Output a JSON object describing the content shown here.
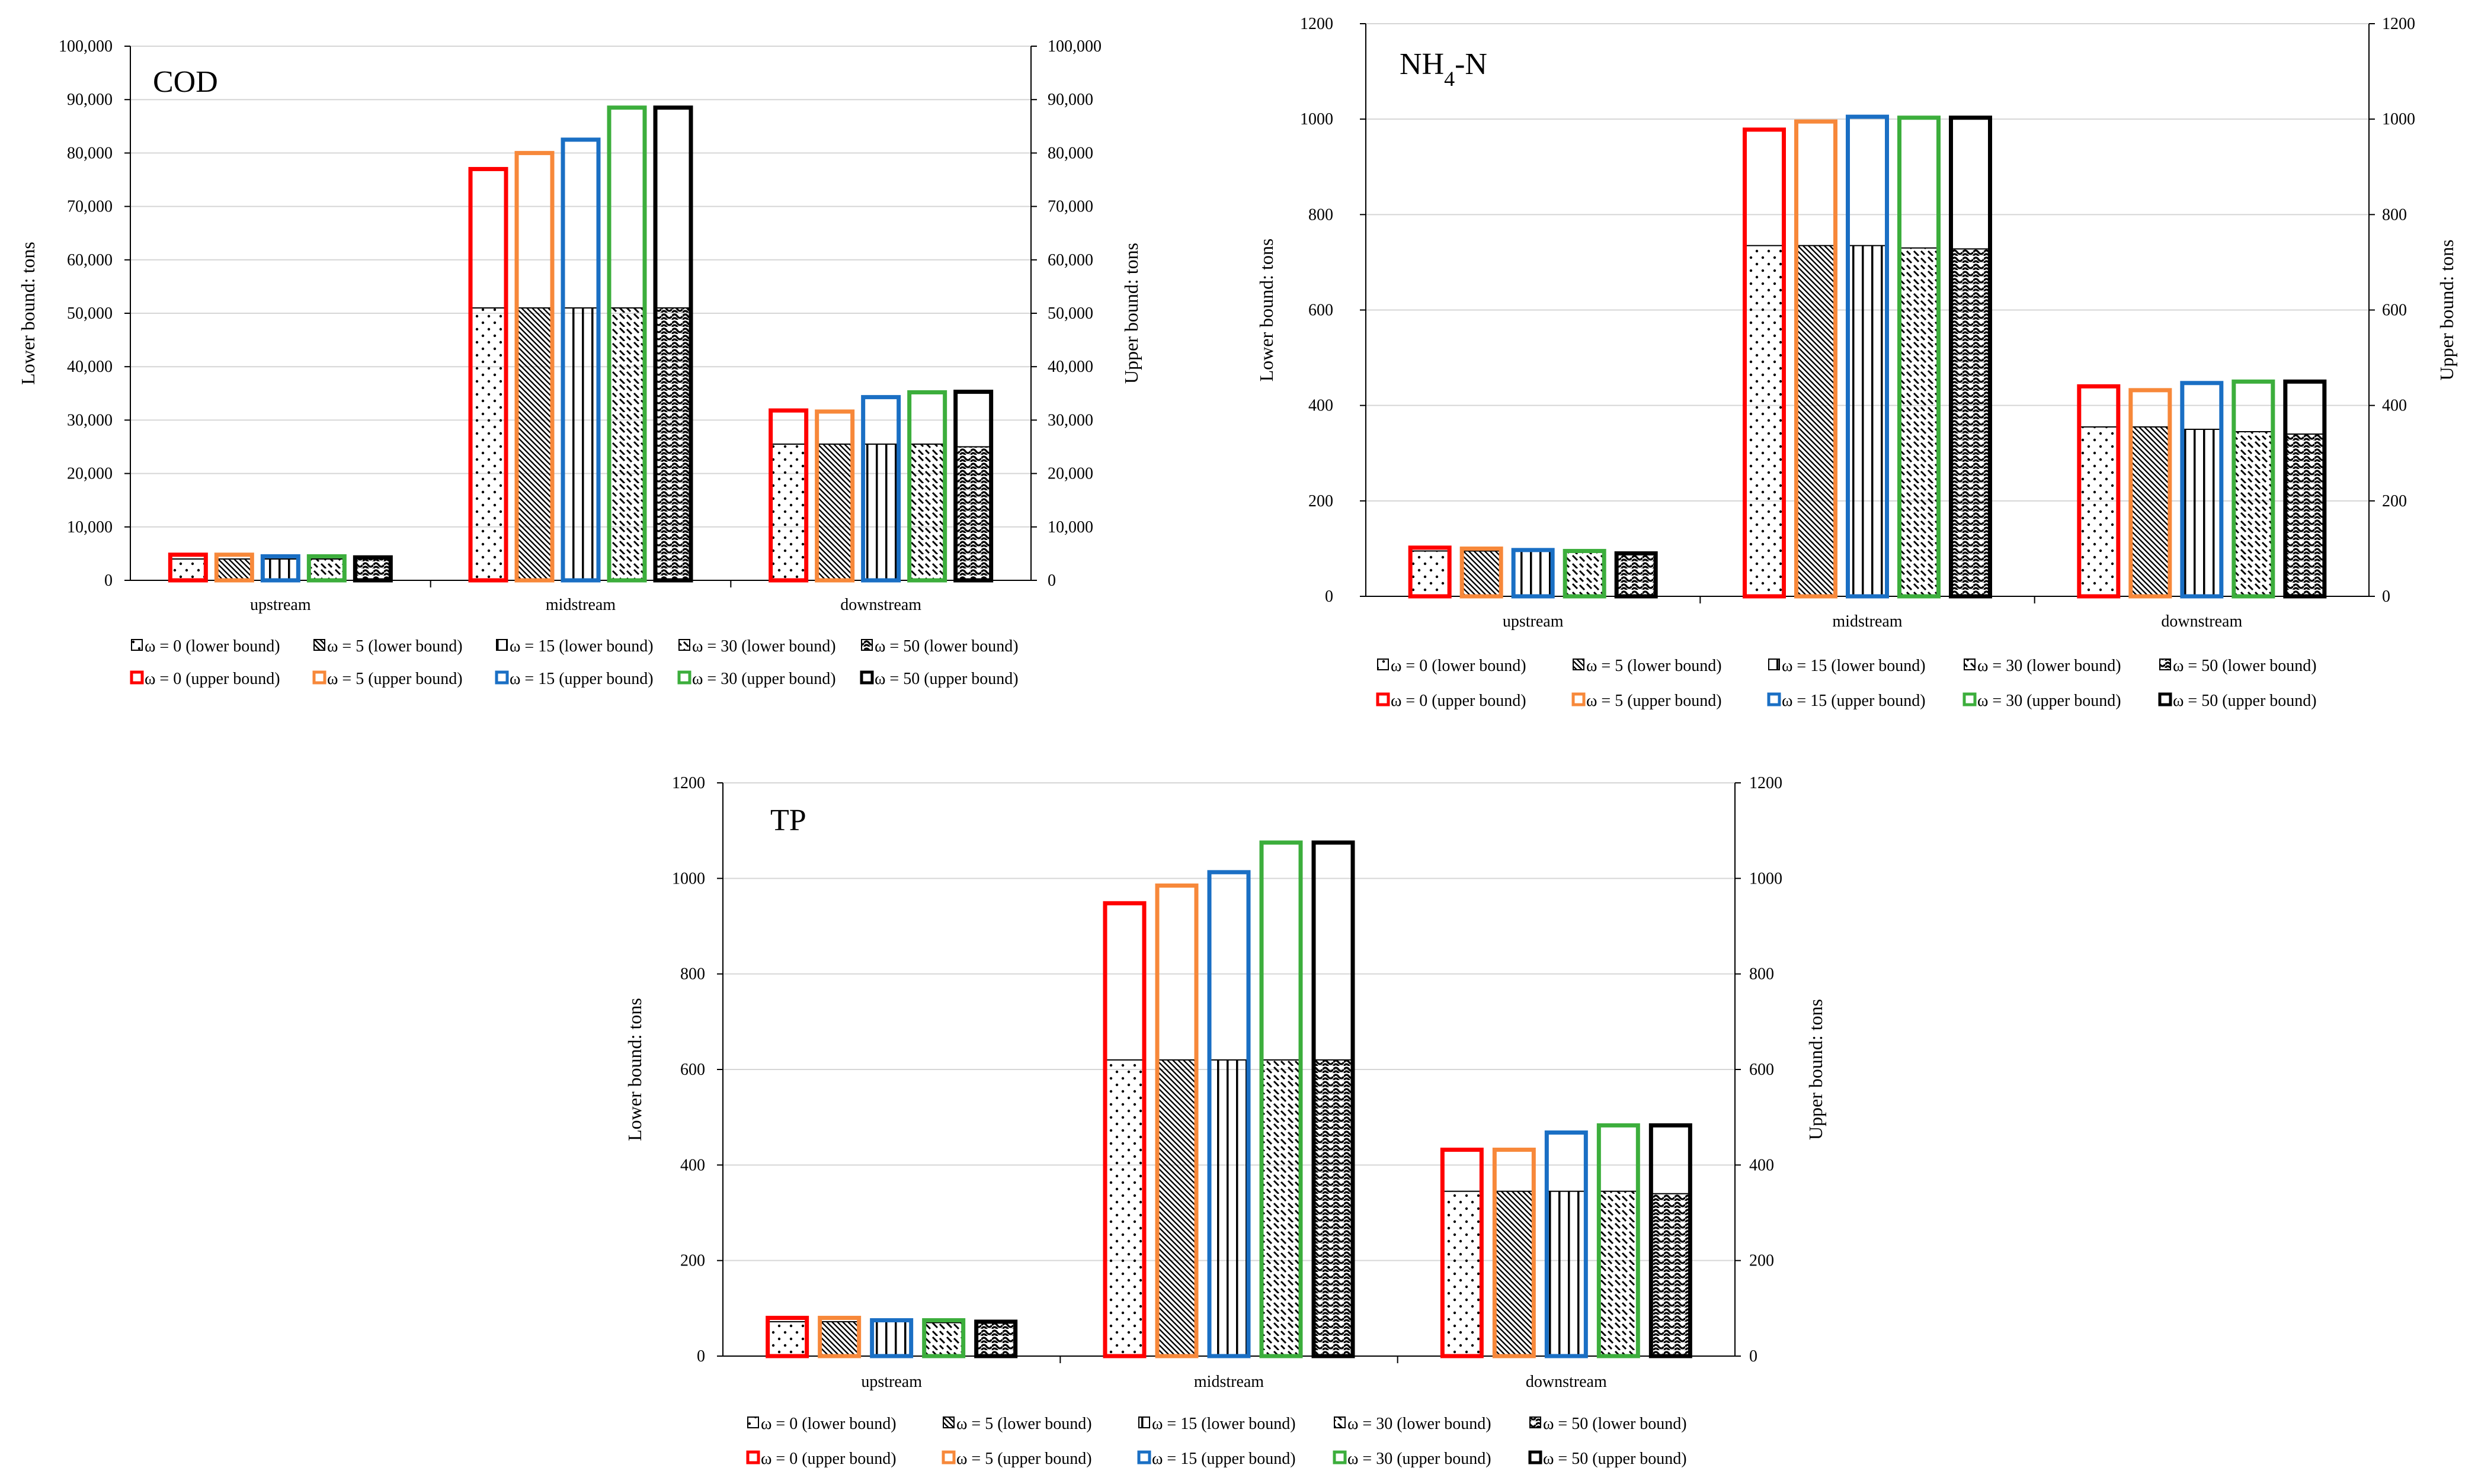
{
  "chart_data": [
    {
      "id": "cod",
      "type": "bar",
      "title": "COD",
      "categories": [
        "upstream",
        "midstream",
        "downstream"
      ],
      "ylabel": "Lower bound: tons",
      "y2label": "Upper bound: tons",
      "ylim": [
        0,
        100000
      ],
      "yticks": [
        "0",
        "10,000",
        "20,000",
        "30,000",
        "40,000",
        "50,000",
        "60,000",
        "70,000",
        "80,000",
        "90,000",
        "100,000"
      ],
      "series": [
        {
          "name": "ω = 0",
          "pattern": "dots",
          "color": "#ff0000",
          "lower": [
            4000,
            51000,
            25500
          ],
          "upper": [
            4800,
            77000,
            31800
          ]
        },
        {
          "name": "ω = 5",
          "pattern": "diag",
          "color": "#f7883a",
          "lower": [
            4000,
            51000,
            25500
          ],
          "upper": [
            4800,
            80000,
            31600
          ]
        },
        {
          "name": "ω = 15",
          "pattern": "vert",
          "color": "#1a6fc4",
          "lower": [
            4000,
            51000,
            25500
          ],
          "upper": [
            4500,
            82500,
            34300
          ]
        },
        {
          "name": "ω = 30",
          "pattern": "dash",
          "color": "#3cae3c",
          "lower": [
            4000,
            51000,
            25500
          ],
          "upper": [
            4500,
            88500,
            35200
          ]
        },
        {
          "name": "ω = 50",
          "pattern": "wave",
          "color": "#000000",
          "lower": [
            4000,
            51000,
            25000
          ],
          "upper": [
            4300,
            88500,
            35300
          ]
        }
      ]
    },
    {
      "id": "nh4",
      "type": "bar",
      "title": "NH",
      "title_sub": "4",
      "title_suffix": "-N",
      "categories": [
        "upstream",
        "midstream",
        "downstream"
      ],
      "ylabel": "Lower bound: tons",
      "y2label": "Upper bound: tons",
      "ylim": [
        0,
        1200
      ],
      "yticks": [
        "0",
        "200",
        "400",
        "600",
        "800",
        "1000",
        "1200"
      ],
      "series": [
        {
          "name": "ω = 0",
          "pattern": "dots",
          "color": "#ff0000",
          "lower": [
            95,
            735,
            355
          ],
          "upper": [
            102,
            978,
            440
          ]
        },
        {
          "name": "ω = 5",
          "pattern": "diag",
          "color": "#f7883a",
          "lower": [
            95,
            735,
            355
          ],
          "upper": [
            100,
            995,
            432
          ]
        },
        {
          "name": "ω = 15",
          "pattern": "vert",
          "color": "#1a6fc4",
          "lower": [
            95,
            735,
            350
          ],
          "upper": [
            97,
            1005,
            447
          ]
        },
        {
          "name": "ω = 30",
          "pattern": "dash",
          "color": "#3cae3c",
          "lower": [
            93,
            730,
            345
          ],
          "upper": [
            95,
            1003,
            450
          ]
        },
        {
          "name": "ω = 50",
          "pattern": "wave",
          "color": "#000000",
          "lower": [
            90,
            728,
            340
          ],
          "upper": [
            90,
            1003,
            450
          ]
        }
      ]
    },
    {
      "id": "tp",
      "type": "bar",
      "title": "TP",
      "categories": [
        "upstream",
        "midstream",
        "downstream"
      ],
      "ylabel": "Lower bound: tons",
      "y2label": "Upper bound: tons",
      "ylim": [
        0,
        1200
      ],
      "yticks": [
        "0",
        "200",
        "400",
        "600",
        "800",
        "1000",
        "1200"
      ],
      "series": [
        {
          "name": "ω = 0",
          "pattern": "dots",
          "color": "#ff0000",
          "lower": [
            72,
            620,
            345
          ],
          "upper": [
            80,
            948,
            432
          ]
        },
        {
          "name": "ω = 5",
          "pattern": "diag",
          "color": "#f7883a",
          "lower": [
            72,
            620,
            345
          ],
          "upper": [
            80,
            985,
            432
          ]
        },
        {
          "name": "ω = 15",
          "pattern": "vert",
          "color": "#1a6fc4",
          "lower": [
            72,
            620,
            345
          ],
          "upper": [
            75,
            1013,
            468
          ]
        },
        {
          "name": "ω = 30",
          "pattern": "dash",
          "color": "#3cae3c",
          "lower": [
            70,
            620,
            345
          ],
          "upper": [
            75,
            1075,
            483
          ]
        },
        {
          "name": "ω = 50",
          "pattern": "wave",
          "color": "#000000",
          "lower": [
            70,
            620,
            340
          ],
          "upper": [
            72,
            1075,
            483
          ]
        }
      ]
    }
  ],
  "legend": {
    "lower_suffix": " (lower bound)",
    "upper_suffix": " (upper bound)"
  }
}
